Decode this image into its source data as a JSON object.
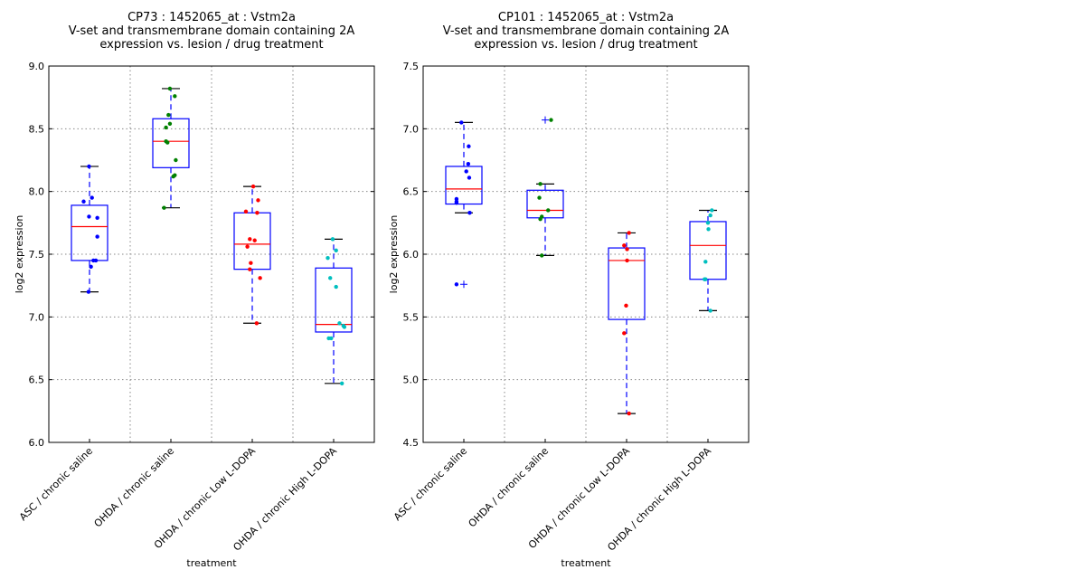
{
  "chart_data": [
    {
      "type": "box",
      "title": [
        "CP73 : 1452065_at : Vstm2a",
        "V-set and transmembrane domain containing 2A",
        "expression vs. lesion / drug treatment"
      ],
      "xlabel": "treatment",
      "ylabel": "log2 expression",
      "ylim": [
        6.0,
        9.0
      ],
      "yticks": [
        "6.0",
        "6.5",
        "7.0",
        "7.5",
        "8.0",
        "8.5",
        "9.0"
      ],
      "grid": true,
      "categories": [
        "ASC / chronic saline",
        "OHDA / chronic saline",
        "OHDA / chronic Low L-DOPA",
        "OHDA / chronic High L-DOPA"
      ],
      "boxes": [
        {
          "q1": 7.45,
          "median": 7.72,
          "q3": 7.89,
          "whisker_low": 7.2,
          "whisker_high": 8.2,
          "outliers": []
        },
        {
          "q1": 8.19,
          "median": 8.4,
          "q3": 8.58,
          "whisker_low": 7.87,
          "whisker_high": 8.82,
          "outliers": []
        },
        {
          "q1": 7.38,
          "median": 7.58,
          "q3": 7.83,
          "whisker_low": 6.95,
          "whisker_high": 8.04,
          "outliers": []
        },
        {
          "q1": 6.88,
          "median": 6.94,
          "q3": 7.39,
          "whisker_low": 6.47,
          "whisker_high": 7.62,
          "outliers": []
        }
      ],
      "points": [
        {
          "color": "#0000ff",
          "values": [
            8.2,
            7.95,
            7.92,
            7.8,
            7.79,
            7.64,
            7.45,
            7.45,
            7.4,
            7.2
          ],
          "offsets": [
            -0.01,
            0.05,
            -0.12,
            -0.01,
            0.16,
            0.16,
            0.08,
            0.13,
            0.03,
            -0.02
          ]
        },
        {
          "color": "#008000",
          "values": [
            8.82,
            8.76,
            8.61,
            8.54,
            8.51,
            8.4,
            8.39,
            8.25,
            8.13,
            8.12,
            7.87
          ],
          "offsets": [
            -0.02,
            0.08,
            -0.05,
            -0.02,
            -0.1,
            -0.1,
            -0.07,
            0.1,
            0.08,
            0.05,
            -0.14
          ]
        },
        {
          "color": "#ff0000",
          "values": [
            8.04,
            7.93,
            7.84,
            7.83,
            7.62,
            7.61,
            7.56,
            7.43,
            7.38,
            7.31,
            6.95
          ],
          "offsets": [
            0.02,
            0.12,
            -0.13,
            0.1,
            -0.05,
            0.05,
            -0.1,
            -0.03,
            -0.05,
            0.16,
            0.09
          ]
        },
        {
          "color": "#00bfbf",
          "values": [
            7.62,
            7.53,
            7.47,
            7.31,
            7.24,
            6.95,
            6.93,
            6.92,
            6.83,
            6.83,
            6.47
          ],
          "offsets": [
            -0.02,
            0.05,
            -0.12,
            -0.07,
            0.05,
            0.12,
            0.2,
            0.22,
            -0.1,
            -0.05,
            0.17
          ]
        }
      ]
    },
    {
      "type": "box",
      "title": [
        "CP101 : 1452065_at : Vstm2a",
        "V-set and transmembrane domain containing 2A",
        "expression vs. lesion / drug treatment"
      ],
      "xlabel": "treatment",
      "ylabel": "log2 expression",
      "ylim": [
        4.5,
        7.5
      ],
      "yticks": [
        "4.5",
        "5.0",
        "5.5",
        "6.0",
        "6.5",
        "7.0",
        "7.5"
      ],
      "grid": true,
      "categories": [
        "ASC / chronic saline",
        "OHDA / chronic saline",
        "OHDA / chronic Low L-DOPA",
        "OHDA / chronic High L-DOPA"
      ],
      "boxes": [
        {
          "q1": 6.4,
          "median": 6.52,
          "q3": 6.7,
          "whisker_low": 6.33,
          "whisker_high": 7.05,
          "outliers": [
            5.76
          ]
        },
        {
          "q1": 6.29,
          "median": 6.35,
          "q3": 6.51,
          "whisker_low": 5.99,
          "whisker_high": 6.56,
          "outliers": [
            7.07
          ]
        },
        {
          "q1": 5.48,
          "median": 5.95,
          "q3": 6.05,
          "whisker_low": 4.73,
          "whisker_high": 6.17,
          "outliers": []
        },
        {
          "q1": 5.8,
          "median": 6.07,
          "q3": 6.26,
          "whisker_low": 5.55,
          "whisker_high": 6.35,
          "outliers": []
        }
      ],
      "points": [
        {
          "color": "#0000ff",
          "values": [
            7.05,
            6.86,
            6.72,
            6.66,
            6.61,
            6.44,
            6.42,
            6.41,
            6.33,
            5.76
          ],
          "offsets": [
            -0.05,
            0.1,
            0.09,
            0.05,
            0.11,
            -0.15,
            -0.15,
            -0.15,
            0.12,
            -0.15
          ]
        },
        {
          "color": "#008000",
          "values": [
            7.07,
            6.56,
            6.45,
            6.35,
            6.3,
            6.28,
            5.99
          ],
          "offsets": [
            0.12,
            -0.1,
            -0.12,
            0.06,
            -0.07,
            -0.1,
            -0.07
          ]
        },
        {
          "color": "#ff0000",
          "values": [
            6.17,
            6.07,
            6.04,
            5.95,
            5.59,
            5.37,
            4.73
          ],
          "offsets": [
            0.05,
            -0.05,
            0.01,
            0.01,
            -0.01,
            -0.05,
            0.05
          ]
        },
        {
          "color": "#00bfbf",
          "values": [
            6.35,
            6.31,
            6.25,
            6.2,
            5.94,
            5.8,
            5.8,
            5.55
          ],
          "offsets": [
            0.08,
            0.05,
            0.0,
            0.01,
            -0.05,
            -0.07,
            -0.05,
            0.05
          ]
        }
      ]
    }
  ]
}
